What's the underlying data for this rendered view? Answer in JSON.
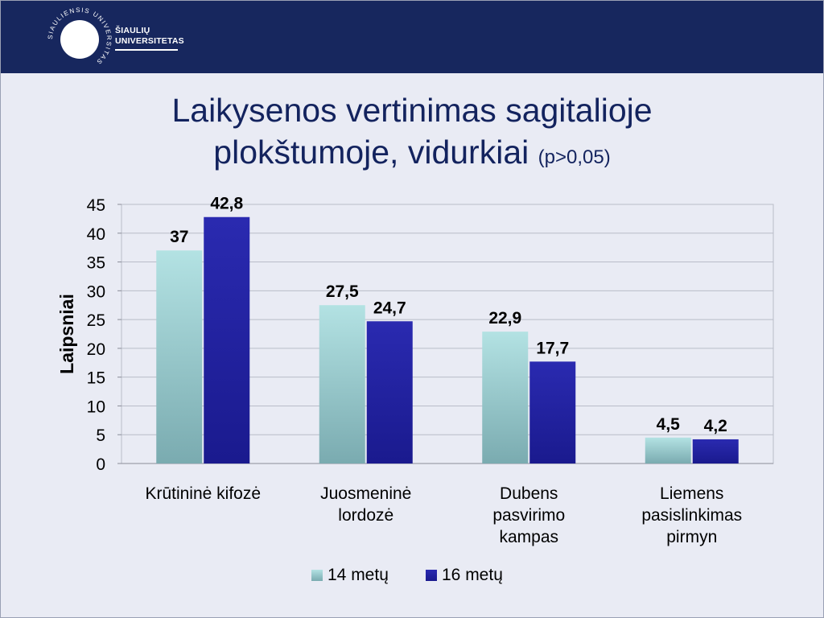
{
  "header": {
    "logo_line1": "ŠIAULIŲ",
    "logo_line2": "UNIVERSITETAS",
    "logo_ring_text": "SIAULIENSIS UNIVERSITAS"
  },
  "slide": {
    "title_line1": "Laikysenos vertinimas sagitalioje",
    "title_line2": "plokštumoje, vidurkiai",
    "title_note": "(p>0,05)"
  },
  "chart_data": {
    "type": "bar",
    "categories": [
      [
        "Krūtininė kifozė"
      ],
      [
        "Juosmeninė",
        "lordozė"
      ],
      [
        "Dubens",
        "pasvirimo",
        "kampas"
      ],
      [
        "Liemens",
        "pasislinkimas",
        "pirmyn"
      ]
    ],
    "series": [
      {
        "name": "14 metų",
        "values": [
          37,
          27.5,
          22.9,
          4.5
        ],
        "labels": [
          "37",
          "27,5",
          "22,9",
          "4,5"
        ],
        "color_top": "#b3e2e3",
        "color_bottom": "#7aabb0"
      },
      {
        "name": "16 metų",
        "values": [
          42.8,
          24.7,
          17.7,
          4.2
        ],
        "labels": [
          "42,8",
          "24,7",
          "17,7",
          "4,2"
        ],
        "color_top": "#2a2ab0",
        "color_bottom": "#1a1a8e"
      }
    ],
    "ylabel": "Laipsniai",
    "ylim": [
      0,
      45
    ],
    "yticks": [
      0,
      5,
      10,
      15,
      20,
      25,
      30,
      35,
      40,
      45
    ],
    "grid": true,
    "legend_position": "bottom"
  }
}
